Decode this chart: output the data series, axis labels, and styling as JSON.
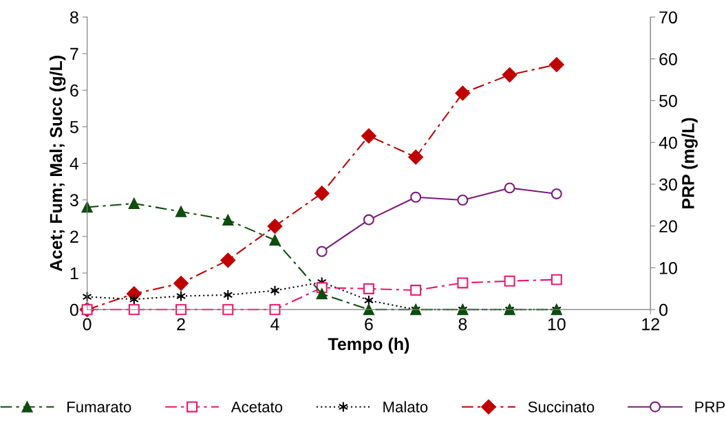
{
  "chart_data": {
    "type": "line",
    "xlabel": "Tempo (h)",
    "ylabel": "Acet; Fum; Mal; Succ (g/L)",
    "y2label": "PRP (mg/L)",
    "x": [
      0,
      1,
      2,
      3,
      4,
      5,
      6,
      7,
      8,
      9,
      10
    ],
    "xlim": [
      0,
      12
    ],
    "xticks": [
      0,
      2,
      4,
      6,
      8,
      10,
      12
    ],
    "ylim": [
      0,
      8
    ],
    "yticks": [
      0,
      1,
      2,
      3,
      4,
      5,
      6,
      7,
      8
    ],
    "y2lim": [
      0,
      70
    ],
    "y2ticks": [
      0,
      10,
      20,
      30,
      40,
      50,
      60,
      70
    ],
    "grid": false,
    "legend": "bottom",
    "series": [
      {
        "name": "Fumarato",
        "color": "#0d4d0d",
        "marker": "triangle",
        "line_style": "dashed",
        "values": [
          2.8,
          2.9,
          2.68,
          2.45,
          1.9,
          0.43,
          0,
          0,
          0,
          0,
          0
        ]
      },
      {
        "name": "Acetato",
        "color": "#e8196e",
        "marker": "square",
        "line_style": "dashed",
        "values": [
          0,
          0,
          0,
          0,
          0,
          0.6,
          0.57,
          0.53,
          0.73,
          0.78,
          0.82
        ]
      },
      {
        "name": "Malato",
        "color": "#000000",
        "marker": "cross",
        "line_style": "dotted",
        "values": [
          0.35,
          0.28,
          0.37,
          0.4,
          0.52,
          0.75,
          0.25,
          0,
          0,
          0,
          0
        ]
      },
      {
        "name": "Succinato",
        "color": "#c00000",
        "marker": "diamond",
        "line_style": "dashed",
        "values": [
          0,
          0.43,
          0.72,
          1.35,
          2.28,
          3.18,
          4.75,
          4.17,
          5.92,
          6.42,
          6.7
        ]
      },
      {
        "name": "PRP",
        "color": "#7b1a7b",
        "marker": "circle",
        "line_style": "solid",
        "axis": "y2",
        "values": [
          null,
          null,
          null,
          null,
          null,
          13.9,
          21.5,
          26.9,
          26.2,
          29.1,
          27.7
        ]
      }
    ]
  }
}
